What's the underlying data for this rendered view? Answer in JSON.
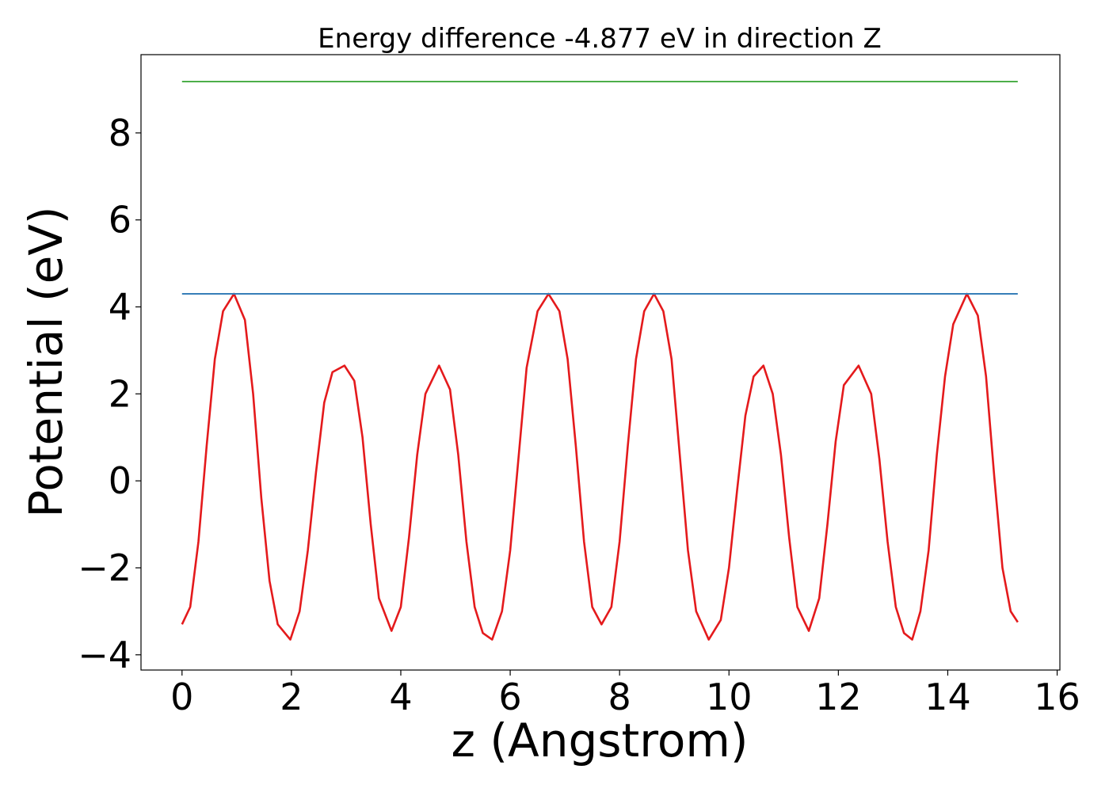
{
  "chart_data": {
    "type": "line",
    "title": "Energy difference -4.877 eV in direction Z",
    "xlabel": "z (Angstrom)",
    "ylabel": "Potential (eV)",
    "xlim": [
      -0.75,
      16.05
    ],
    "ylim": [
      -4.35,
      9.8
    ],
    "xticks": [
      0,
      2,
      4,
      6,
      8,
      10,
      12,
      14,
      16
    ],
    "yticks": [
      -4,
      -2,
      0,
      2,
      4,
      6,
      8
    ],
    "grid": false,
    "legend": "none",
    "series": [
      {
        "color": "#e41a1c",
        "x": [
          0.0,
          0.15,
          0.3,
          0.45,
          0.6,
          0.75,
          0.95,
          1.15,
          1.3,
          1.45,
          1.6,
          1.75,
          1.98,
          2.15,
          2.3,
          2.45,
          2.6,
          2.75,
          2.97,
          3.15,
          3.3,
          3.45,
          3.6,
          3.83,
          4.0,
          4.15,
          4.3,
          4.45,
          4.7,
          4.9,
          5.05,
          5.2,
          5.35,
          5.5,
          5.67,
          5.85,
          6.0,
          6.15,
          6.3,
          6.5,
          6.7,
          6.9,
          7.05,
          7.2,
          7.35,
          7.5,
          7.67,
          7.85,
          8.0,
          8.15,
          8.3,
          8.45,
          8.63,
          8.8,
          8.95,
          9.1,
          9.25,
          9.4,
          9.63,
          9.85,
          10.0,
          10.15,
          10.3,
          10.45,
          10.63,
          10.8,
          10.95,
          11.1,
          11.25,
          11.46,
          11.65,
          11.8,
          11.95,
          12.1,
          12.37,
          12.6,
          12.75,
          12.9,
          13.05,
          13.2,
          13.35,
          13.5,
          13.65,
          13.8,
          13.95,
          14.1,
          14.35,
          14.55,
          14.7,
          14.85,
          15.0,
          15.15,
          15.28
        ],
        "y": [
          -3.3,
          -2.9,
          -1.4,
          0.8,
          2.8,
          3.9,
          4.3,
          3.7,
          2.0,
          -0.4,
          -2.3,
          -3.3,
          -3.65,
          -3.0,
          -1.6,
          0.2,
          1.8,
          2.5,
          2.65,
          2.3,
          1.0,
          -1.0,
          -2.7,
          -3.45,
          -2.9,
          -1.3,
          0.6,
          2.0,
          2.65,
          2.1,
          0.6,
          -1.4,
          -2.9,
          -3.5,
          -3.65,
          -3.0,
          -1.6,
          0.5,
          2.6,
          3.9,
          4.3,
          3.9,
          2.8,
          0.8,
          -1.4,
          -2.9,
          -3.3,
          -2.9,
          -1.4,
          0.8,
          2.8,
          3.9,
          4.3,
          3.9,
          2.8,
          0.6,
          -1.6,
          -3.0,
          -3.65,
          -3.2,
          -2.0,
          -0.2,
          1.5,
          2.4,
          2.65,
          2.0,
          0.6,
          -1.3,
          -2.9,
          -3.45,
          -2.7,
          -1.0,
          0.9,
          2.2,
          2.65,
          2.0,
          0.5,
          -1.4,
          -2.9,
          -3.5,
          -3.65,
          -3.0,
          -1.6,
          0.6,
          2.4,
          3.6,
          4.3,
          3.8,
          2.4,
          0.1,
          -2.0,
          -3.0,
          -3.25
        ]
      },
      {
        "color": "#377eb8",
        "x": [
          0.0,
          15.28
        ],
        "y": [
          4.3,
          4.3
        ]
      },
      {
        "color": "#4daf4a",
        "x": [
          0.0,
          15.28
        ],
        "y": [
          9.18,
          9.18
        ]
      }
    ]
  }
}
